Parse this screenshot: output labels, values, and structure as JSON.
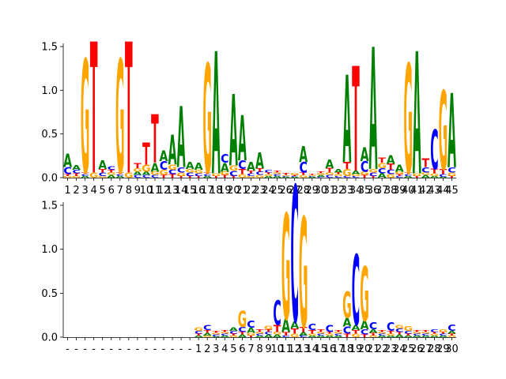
{
  "colors": {
    "A": "#008000",
    "C": "#0000ff",
    "G": "#ffa500",
    "T": "#ff0000"
  },
  "chart_data": [
    {
      "type": "sequence-logo",
      "title": "",
      "xlabel": "",
      "ylabel": "",
      "ylim": [
        0,
        1.5
      ],
      "y_ticks": [
        "0.0",
        "0.5",
        "1.0",
        "1.5"
      ],
      "x_ticks": [
        "1",
        "2",
        "3",
        "4",
        "5",
        "6",
        "7",
        "8",
        "9",
        "10",
        "11",
        "12",
        "13",
        "14",
        "15",
        "16",
        "17",
        "18",
        "19",
        "20",
        "21",
        "22",
        "23",
        "24",
        "25",
        "26",
        "27",
        "28",
        "29",
        "30",
        "31",
        "32",
        "33",
        "34",
        "35",
        "36",
        "37",
        "38",
        "39",
        "40",
        "41",
        "42",
        "43",
        "44",
        "45"
      ],
      "positions": [
        {
          "A": 0.15,
          "C": 0.08,
          "G": 0.02,
          "T": 0.02
        },
        {
          "A": 0.05,
          "C": 0.04,
          "G": 0.02,
          "T": 0.03
        },
        {
          "A": 0.02,
          "C": 0.02,
          "G": 1.3,
          "T": 0.02
        },
        {
          "A": 0.0,
          "C": 0.0,
          "G": 0.06,
          "T": 1.5
        },
        {
          "A": 0.1,
          "C": 0.04,
          "G": 0.02,
          "T": 0.04
        },
        {
          "A": 0.03,
          "C": 0.04,
          "G": 0.03,
          "T": 0.03
        },
        {
          "A": 0.02,
          "C": 0.02,
          "G": 1.3,
          "T": 0.02
        },
        {
          "A": 0.0,
          "C": 0.0,
          "G": 0.06,
          "T": 1.5
        },
        {
          "A": 0.04,
          "C": 0.03,
          "G": 0.04,
          "T": 0.06
        },
        {
          "A": 0.04,
          "C": 0.03,
          "G": 0.08,
          "T": 0.25
        },
        {
          "A": 0.1,
          "C": 0.03,
          "G": 0.04,
          "T": 0.55
        },
        {
          "A": 0.12,
          "C": 0.1,
          "G": 0.06,
          "T": 0.03
        },
        {
          "A": 0.34,
          "C": 0.05,
          "G": 0.06,
          "T": 0.04
        },
        {
          "A": 0.7,
          "C": 0.06,
          "G": 0.04,
          "T": 0.02
        },
        {
          "A": 0.08,
          "C": 0.04,
          "G": 0.04,
          "T": 0.02
        },
        {
          "A": 0.08,
          "C": 0.03,
          "G": 0.04,
          "T": 0.02
        },
        {
          "A": 0.02,
          "C": 0.02,
          "G": 1.25,
          "T": 0.02
        },
        {
          "A": 1.4,
          "C": 0.0,
          "G": 0.03,
          "T": 0.02
        },
        {
          "A": 0.1,
          "C": 0.1,
          "G": 0.04,
          "T": 0.03
        },
        {
          "A": 0.82,
          "C": 0.06,
          "G": 0.06,
          "T": 0.02
        },
        {
          "A": 0.52,
          "C": 0.1,
          "G": 0.04,
          "T": 0.06
        },
        {
          "A": 0.1,
          "C": 0.03,
          "G": 0.02,
          "T": 0.03
        },
        {
          "A": 0.18,
          "C": 0.04,
          "G": 0.03,
          "T": 0.04
        },
        {
          "A": 0.02,
          "C": 0.03,
          "G": 0.02,
          "T": 0.02
        },
        {
          "A": 0.02,
          "C": 0.02,
          "G": 0.02,
          "T": 0.02
        },
        {
          "A": 0.01,
          "C": 0.01,
          "G": 0.01,
          "T": 0.02
        },
        {
          "A": 0.01,
          "C": 0.01,
          "G": 0.02,
          "T": 0.01
        },
        {
          "A": 0.18,
          "C": 0.12,
          "G": 0.03,
          "T": 0.03
        },
        {
          "A": 0.01,
          "C": 0.01,
          "G": 0.01,
          "T": 0.01
        },
        {
          "A": 0.02,
          "C": 0.01,
          "G": 0.02,
          "T": 0.02
        },
        {
          "A": 0.1,
          "C": 0.03,
          "G": 0.03,
          "T": 0.05
        },
        {
          "A": 0.04,
          "C": 0.02,
          "G": 0.02,
          "T": 0.02
        },
        {
          "A": 1.0,
          "C": 0.02,
          "G": 0.08,
          "T": 0.08
        },
        {
          "A": 0.04,
          "C": 0.02,
          "G": 0.02,
          "T": 1.2
        },
        {
          "A": 0.16,
          "C": 0.12,
          "G": 0.04,
          "T": 0.03
        },
        {
          "A": 1.4,
          "C": 0.04,
          "G": 0.04,
          "T": 0.02
        },
        {
          "A": 0.05,
          "C": 0.06,
          "G": 0.06,
          "T": 0.06
        },
        {
          "A": 0.1,
          "C": 0.05,
          "G": 0.04,
          "T": 0.07
        },
        {
          "A": 0.08,
          "C": 0.02,
          "G": 0.03,
          "T": 0.02
        },
        {
          "A": 0.02,
          "C": 0.02,
          "G": 1.25,
          "T": 0.02
        },
        {
          "A": 1.4,
          "C": 0.0,
          "G": 0.03,
          "T": 0.02
        },
        {
          "A": 0.03,
          "C": 0.06,
          "G": 0.03,
          "T": 0.1
        },
        {
          "A": 0.02,
          "C": 0.45,
          "G": 0.03,
          "T": 0.05
        },
        {
          "A": 0.01,
          "C": 0.03,
          "G": 0.9,
          "T": 0.06
        },
        {
          "A": 0.85,
          "C": 0.06,
          "G": 0.04,
          "T": 0.02
        }
      ]
    },
    {
      "type": "sequence-logo",
      "title": "",
      "xlabel": "",
      "ylabel": "",
      "ylim": [
        0,
        1.6
      ],
      "y_ticks": [
        "0.0",
        "0.5",
        "1.0",
        "1.5"
      ],
      "x_ticks": [
        "-",
        "-",
        "-",
        "-",
        "-",
        "-",
        "-",
        "-",
        "-",
        "-",
        "-",
        "-",
        "-",
        "-",
        "-",
        "1",
        "2",
        "3",
        "4",
        "5",
        "6",
        "7",
        "8",
        "9",
        "10",
        "11",
        "12",
        "13",
        "14",
        "15",
        "16",
        "17",
        "18",
        "19",
        "20",
        "21",
        "22",
        "23",
        "24",
        "25",
        "26",
        "27",
        "28",
        "29",
        "30"
      ],
      "positions": [
        {
          "A": 0,
          "C": 0,
          "G": 0,
          "T": 0
        },
        {
          "A": 0,
          "C": 0,
          "G": 0,
          "T": 0
        },
        {
          "A": 0,
          "C": 0,
          "G": 0,
          "T": 0
        },
        {
          "A": 0,
          "C": 0,
          "G": 0,
          "T": 0
        },
        {
          "A": 0,
          "C": 0,
          "G": 0,
          "T": 0
        },
        {
          "A": 0,
          "C": 0,
          "G": 0,
          "T": 0
        },
        {
          "A": 0,
          "C": 0,
          "G": 0,
          "T": 0
        },
        {
          "A": 0,
          "C": 0,
          "G": 0,
          "T": 0
        },
        {
          "A": 0,
          "C": 0,
          "G": 0,
          "T": 0
        },
        {
          "A": 0,
          "C": 0,
          "G": 0,
          "T": 0
        },
        {
          "A": 0,
          "C": 0,
          "G": 0,
          "T": 0
        },
        {
          "A": 0,
          "C": 0,
          "G": 0,
          "T": 0
        },
        {
          "A": 0,
          "C": 0,
          "G": 0,
          "T": 0
        },
        {
          "A": 0,
          "C": 0,
          "G": 0,
          "T": 0
        },
        {
          "A": 0,
          "C": 0,
          "G": 0,
          "T": 0
        },
        {
          "A": 0.02,
          "C": 0.03,
          "G": 0.04,
          "T": 0.02
        },
        {
          "A": 0.03,
          "C": 0.06,
          "G": 0.02,
          "T": 0.03
        },
        {
          "A": 0.01,
          "C": 0.02,
          "G": 0.02,
          "T": 0.02
        },
        {
          "A": 0.02,
          "C": 0.02,
          "G": 0.02,
          "T": 0.02
        },
        {
          "A": 0.04,
          "C": 0.03,
          "G": 0.02,
          "T": 0.02
        },
        {
          "A": 0.03,
          "C": 0.06,
          "G": 0.18,
          "T": 0.03
        },
        {
          "A": 0.06,
          "C": 0.08,
          "G": 0.03,
          "T": 0.02
        },
        {
          "A": 0.02,
          "C": 0.02,
          "G": 0.02,
          "T": 0.03
        },
        {
          "A": 0.03,
          "C": 0.03,
          "G": 0.04,
          "T": 0.03
        },
        {
          "A": 0.03,
          "C": 0.28,
          "G": 0.03,
          "T": 0.08
        },
        {
          "A": 0.15,
          "C": 0.02,
          "G": 1.2,
          "T": 0.04
        },
        {
          "A": 0.08,
          "C": 1.55,
          "G": 0.04,
          "T": 0.06
        },
        {
          "A": 0.04,
          "C": 0.02,
          "G": 1.25,
          "T": 0.06
        },
        {
          "A": 0.02,
          "C": 0.07,
          "G": 0.02,
          "T": 0.04
        },
        {
          "A": 0.02,
          "C": 0.02,
          "G": 0.02,
          "T": 0.03
        },
        {
          "A": 0.02,
          "C": 0.08,
          "G": 0.02,
          "T": 0.02
        },
        {
          "A": 0.02,
          "C": 0.02,
          "G": 0.02,
          "T": 0.02
        },
        {
          "A": 0.1,
          "C": 0.08,
          "G": 0.3,
          "T": 0.04
        },
        {
          "A": 0.06,
          "C": 0.8,
          "G": 0.04,
          "T": 0.04
        },
        {
          "A": 0.1,
          "C": 0.06,
          "G": 0.62,
          "T": 0.03
        },
        {
          "A": 0.04,
          "C": 0.08,
          "G": 0.02,
          "T": 0.03
        },
        {
          "A": 0.02,
          "C": 0.02,
          "G": 0.02,
          "T": 0.02
        },
        {
          "A": 0.02,
          "C": 0.1,
          "G": 0.02,
          "T": 0.03
        },
        {
          "A": 0.03,
          "C": 0.04,
          "G": 0.04,
          "T": 0.03
        },
        {
          "A": 0.02,
          "C": 0.03,
          "G": 0.05,
          "T": 0.02
        },
        {
          "A": 0.02,
          "C": 0.02,
          "G": 0.02,
          "T": 0.02
        },
        {
          "A": 0.02,
          "C": 0.02,
          "G": 0.02,
          "T": 0.02
        },
        {
          "A": 0.02,
          "C": 0.03,
          "G": 0.02,
          "T": 0.02
        },
        {
          "A": 0.02,
          "C": 0.02,
          "G": 0.03,
          "T": 0.02
        },
        {
          "A": 0.03,
          "C": 0.07,
          "G": 0.02,
          "T": 0.02
        }
      ]
    }
  ]
}
